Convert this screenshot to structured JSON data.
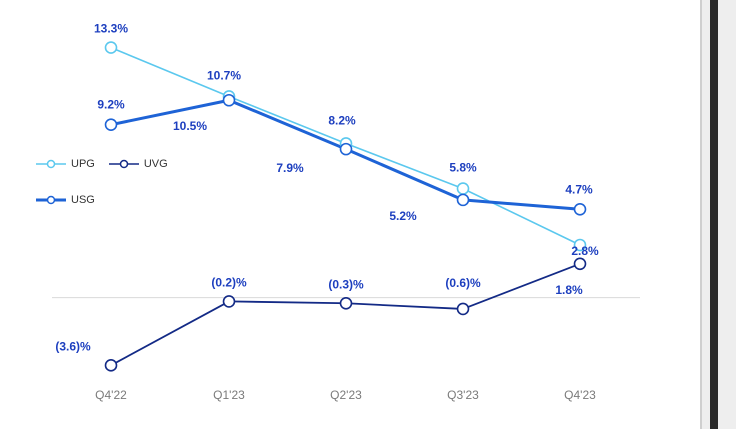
{
  "chart_data": {
    "type": "line",
    "categories": [
      "Q4'22",
      "Q1'23",
      "Q2'23",
      "Q3'23",
      "Q4'23"
    ],
    "series": [
      {
        "name": "UPG",
        "color": "#5bc8ee",
        "values": [
          13.3,
          10.7,
          8.2,
          5.8,
          2.8
        ],
        "labels": [
          "13.3%",
          "10.7%",
          "8.2%",
          "5.8%",
          "2.8%"
        ]
      },
      {
        "name": "USG",
        "color": "#1e63d6",
        "values": [
          9.2,
          10.5,
          7.9,
          5.2,
          4.7
        ],
        "labels": [
          "9.2%",
          "10.5%",
          "7.9%",
          "5.2%",
          "4.7%"
        ]
      },
      {
        "name": "UVG",
        "color": "#132a86",
        "values": [
          -3.6,
          -0.2,
          -0.3,
          -0.6,
          1.8
        ],
        "labels": [
          "(3.6)%",
          "(0.2)%",
          "(0.3)%",
          "(0.6)%",
          "1.8%"
        ]
      }
    ],
    "ylim": [
      -4.7,
      15.3
    ],
    "zero_line": true,
    "grid": false,
    "legend_position": "left"
  },
  "style": {
    "label_color": "#1d3fbf",
    "tick_color": "#7a7a7a",
    "zero_line_color": "#d9d9d9"
  }
}
